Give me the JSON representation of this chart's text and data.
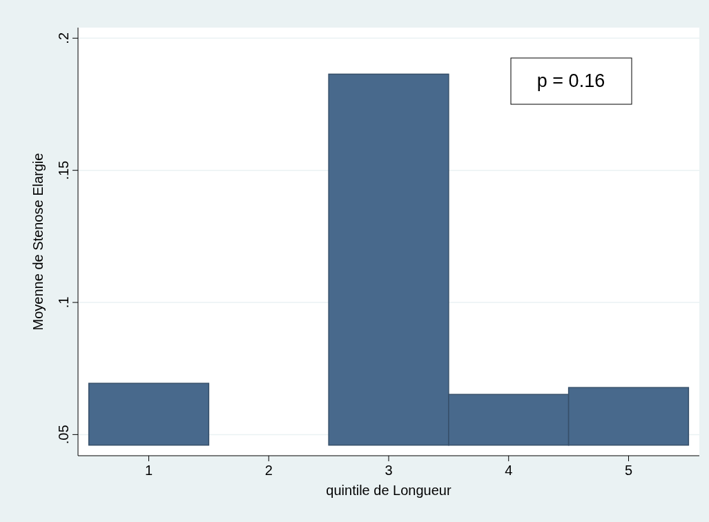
{
  "chart_data": {
    "type": "bar",
    "categories": [
      "1",
      "2",
      "3",
      "4",
      "5"
    ],
    "values": [
      0.0234,
      null,
      0.1404,
      0.0192,
      0.0218
    ],
    "base": [
      0.046,
      null,
      0.046,
      0.046,
      0.046
    ],
    "color": "#48698c",
    "ylim": [
      0.042,
      0.204
    ],
    "yticks": [
      {
        "value": 0.05,
        "label": ".05"
      },
      {
        "value": 0.1,
        "label": ".1"
      },
      {
        "value": 0.15,
        "label": ".15"
      },
      {
        "value": 0.2,
        "label": ".2"
      }
    ],
    "grid": "y",
    "xlabel": "quintile de Longueur",
    "ylabel": "Moyenne de Stenose Elargie",
    "annotations": [
      "p = 0.16"
    ]
  }
}
